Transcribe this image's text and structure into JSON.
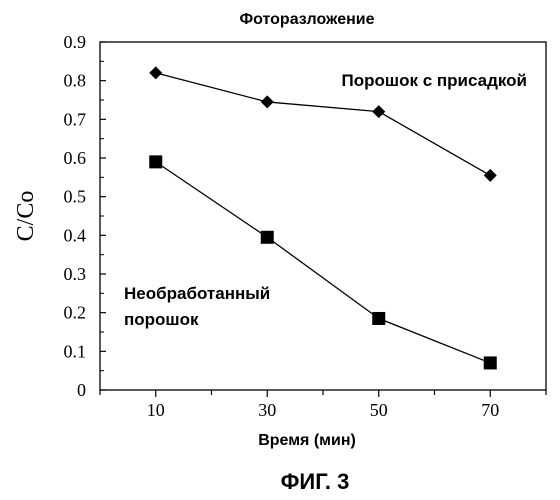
{
  "chart_data": {
    "type": "line",
    "title": "Фоторазложение",
    "xlabel": "Время (мин)",
    "ylabel": "C/Co",
    "figure_label": "ФИГ. 3",
    "x": [
      10,
      30,
      50,
      70
    ],
    "x_ticks": [
      "10",
      "30",
      "50",
      "70"
    ],
    "xlim": [
      0,
      80
    ],
    "ylim": [
      0,
      0.9
    ],
    "y_ticks": [
      "0",
      "0.1",
      "0.2",
      "0.3",
      "0.4",
      "0.5",
      "0.6",
      "0.7",
      "0.8",
      "0.9"
    ],
    "grid": false,
    "series": [
      {
        "name": "Порошок с присадкой",
        "marker": "diamond",
        "color": "#000000",
        "values": [
          0.82,
          0.745,
          0.72,
          0.555
        ]
      },
      {
        "name": "Необработанный порошок",
        "name_lines": [
          "Необработанный",
          "порошок"
        ],
        "marker": "square",
        "color": "#000000",
        "values": [
          0.59,
          0.395,
          0.185,
          0.07
        ]
      }
    ]
  }
}
